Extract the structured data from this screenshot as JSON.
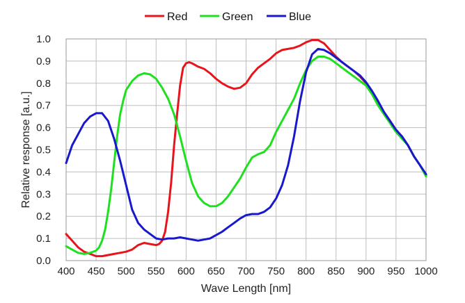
{
  "chart_data": {
    "type": "line",
    "title": "",
    "xlabel": "Wave Length [nm]",
    "ylabel": "Relative response [a.u.]",
    "xlim": [
      400,
      1000
    ],
    "ylim": [
      0,
      1.0
    ],
    "xticks": [
      "400",
      "450",
      "500",
      "550",
      "600",
      "650",
      "700",
      "750",
      "800",
      "850",
      "900",
      "950",
      "1000"
    ],
    "yticks": [
      "0.0",
      "0.1",
      "0.2",
      "0.3",
      "0.4",
      "0.5",
      "0.6",
      "0.7",
      "0.8",
      "0.9",
      "1.0"
    ],
    "grid": true,
    "legend_position": "top-center",
    "series": [
      {
        "name": "Red",
        "color": "#e8141c",
        "points": [
          [
            400,
            0.12
          ],
          [
            410,
            0.09
          ],
          [
            420,
            0.06
          ],
          [
            430,
            0.04
          ],
          [
            440,
            0.03
          ],
          [
            450,
            0.02
          ],
          [
            460,
            0.02
          ],
          [
            470,
            0.025
          ],
          [
            480,
            0.03
          ],
          [
            490,
            0.035
          ],
          [
            500,
            0.04
          ],
          [
            510,
            0.05
          ],
          [
            520,
            0.07
          ],
          [
            530,
            0.08
          ],
          [
            540,
            0.075
          ],
          [
            550,
            0.07
          ],
          [
            555,
            0.075
          ],
          [
            560,
            0.09
          ],
          [
            565,
            0.13
          ],
          [
            570,
            0.22
          ],
          [
            575,
            0.35
          ],
          [
            580,
            0.52
          ],
          [
            585,
            0.66
          ],
          [
            590,
            0.79
          ],
          [
            595,
            0.87
          ],
          [
            600,
            0.89
          ],
          [
            605,
            0.895
          ],
          [
            610,
            0.89
          ],
          [
            620,
            0.875
          ],
          [
            630,
            0.865
          ],
          [
            640,
            0.845
          ],
          [
            650,
            0.82
          ],
          [
            660,
            0.8
          ],
          [
            670,
            0.785
          ],
          [
            680,
            0.775
          ],
          [
            690,
            0.78
          ],
          [
            700,
            0.8
          ],
          [
            710,
            0.84
          ],
          [
            720,
            0.87
          ],
          [
            730,
            0.89
          ],
          [
            740,
            0.91
          ],
          [
            750,
            0.935
          ],
          [
            760,
            0.95
          ],
          [
            770,
            0.955
          ],
          [
            780,
            0.96
          ],
          [
            790,
            0.97
          ],
          [
            800,
            0.985
          ],
          [
            810,
            0.995
          ],
          [
            820,
            0.995
          ],
          [
            830,
            0.98
          ],
          [
            840,
            0.95
          ],
          [
            850,
            0.92
          ],
          [
            860,
            0.895
          ],
          [
            870,
            0.875
          ],
          [
            880,
            0.855
          ],
          [
            890,
            0.83
          ],
          [
            900,
            0.8
          ],
          [
            910,
            0.76
          ],
          [
            920,
            0.71
          ],
          [
            930,
            0.67
          ],
          [
            940,
            0.63
          ],
          [
            950,
            0.59
          ],
          [
            960,
            0.56
          ],
          [
            970,
            0.52
          ],
          [
            980,
            0.47
          ],
          [
            990,
            0.43
          ],
          [
            1000,
            0.385
          ]
        ]
      },
      {
        "name": "Green",
        "color": "#1ee01e",
        "points": [
          [
            400,
            0.065
          ],
          [
            410,
            0.05
          ],
          [
            420,
            0.035
          ],
          [
            430,
            0.03
          ],
          [
            440,
            0.035
          ],
          [
            450,
            0.045
          ],
          [
            455,
            0.06
          ],
          [
            460,
            0.09
          ],
          [
            465,
            0.14
          ],
          [
            470,
            0.22
          ],
          [
            475,
            0.32
          ],
          [
            480,
            0.44
          ],
          [
            485,
            0.56
          ],
          [
            490,
            0.66
          ],
          [
            495,
            0.72
          ],
          [
            500,
            0.77
          ],
          [
            510,
            0.81
          ],
          [
            520,
            0.835
          ],
          [
            530,
            0.845
          ],
          [
            540,
            0.84
          ],
          [
            550,
            0.82
          ],
          [
            560,
            0.78
          ],
          [
            570,
            0.73
          ],
          [
            580,
            0.66
          ],
          [
            590,
            0.56
          ],
          [
            600,
            0.45
          ],
          [
            610,
            0.35
          ],
          [
            620,
            0.29
          ],
          [
            630,
            0.26
          ],
          [
            640,
            0.245
          ],
          [
            650,
            0.245
          ],
          [
            660,
            0.26
          ],
          [
            670,
            0.29
          ],
          [
            680,
            0.33
          ],
          [
            690,
            0.37
          ],
          [
            700,
            0.42
          ],
          [
            710,
            0.465
          ],
          [
            720,
            0.48
          ],
          [
            730,
            0.49
          ],
          [
            740,
            0.52
          ],
          [
            750,
            0.58
          ],
          [
            760,
            0.63
          ],
          [
            770,
            0.68
          ],
          [
            780,
            0.73
          ],
          [
            790,
            0.8
          ],
          [
            800,
            0.86
          ],
          [
            810,
            0.9
          ],
          [
            820,
            0.92
          ],
          [
            830,
            0.92
          ],
          [
            840,
            0.91
          ],
          [
            850,
            0.89
          ],
          [
            860,
            0.87
          ],
          [
            870,
            0.85
          ],
          [
            880,
            0.83
          ],
          [
            890,
            0.81
          ],
          [
            900,
            0.79
          ],
          [
            910,
            0.75
          ],
          [
            920,
            0.7
          ],
          [
            930,
            0.66
          ],
          [
            940,
            0.62
          ],
          [
            950,
            0.58
          ],
          [
            960,
            0.55
          ],
          [
            970,
            0.52
          ],
          [
            980,
            0.47
          ],
          [
            990,
            0.43
          ],
          [
            1000,
            0.38
          ]
        ]
      },
      {
        "name": "Blue",
        "color": "#1818cc",
        "points": [
          [
            400,
            0.44
          ],
          [
            410,
            0.52
          ],
          [
            420,
            0.57
          ],
          [
            430,
            0.62
          ],
          [
            440,
            0.65
          ],
          [
            450,
            0.665
          ],
          [
            460,
            0.665
          ],
          [
            470,
            0.63
          ],
          [
            480,
            0.55
          ],
          [
            490,
            0.45
          ],
          [
            500,
            0.34
          ],
          [
            510,
            0.23
          ],
          [
            520,
            0.17
          ],
          [
            530,
            0.14
          ],
          [
            540,
            0.12
          ],
          [
            550,
            0.1
          ],
          [
            560,
            0.095
          ],
          [
            570,
            0.1
          ],
          [
            580,
            0.1
          ],
          [
            590,
            0.105
          ],
          [
            600,
            0.1
          ],
          [
            610,
            0.095
          ],
          [
            620,
            0.09
          ],
          [
            630,
            0.095
          ],
          [
            640,
            0.1
          ],
          [
            650,
            0.115
          ],
          [
            660,
            0.13
          ],
          [
            670,
            0.15
          ],
          [
            680,
            0.17
          ],
          [
            690,
            0.19
          ],
          [
            700,
            0.205
          ],
          [
            710,
            0.21
          ],
          [
            720,
            0.21
          ],
          [
            730,
            0.22
          ],
          [
            740,
            0.24
          ],
          [
            750,
            0.28
          ],
          [
            760,
            0.34
          ],
          [
            770,
            0.43
          ],
          [
            780,
            0.56
          ],
          [
            790,
            0.72
          ],
          [
            800,
            0.85
          ],
          [
            810,
            0.93
          ],
          [
            820,
            0.955
          ],
          [
            830,
            0.95
          ],
          [
            840,
            0.935
          ],
          [
            850,
            0.915
          ],
          [
            860,
            0.895
          ],
          [
            870,
            0.875
          ],
          [
            880,
            0.855
          ],
          [
            890,
            0.835
          ],
          [
            900,
            0.805
          ],
          [
            910,
            0.765
          ],
          [
            920,
            0.72
          ],
          [
            930,
            0.67
          ],
          [
            940,
            0.63
          ],
          [
            950,
            0.59
          ],
          [
            960,
            0.56
          ],
          [
            970,
            0.52
          ],
          [
            980,
            0.47
          ],
          [
            990,
            0.43
          ],
          [
            1000,
            0.39
          ]
        ]
      }
    ]
  }
}
